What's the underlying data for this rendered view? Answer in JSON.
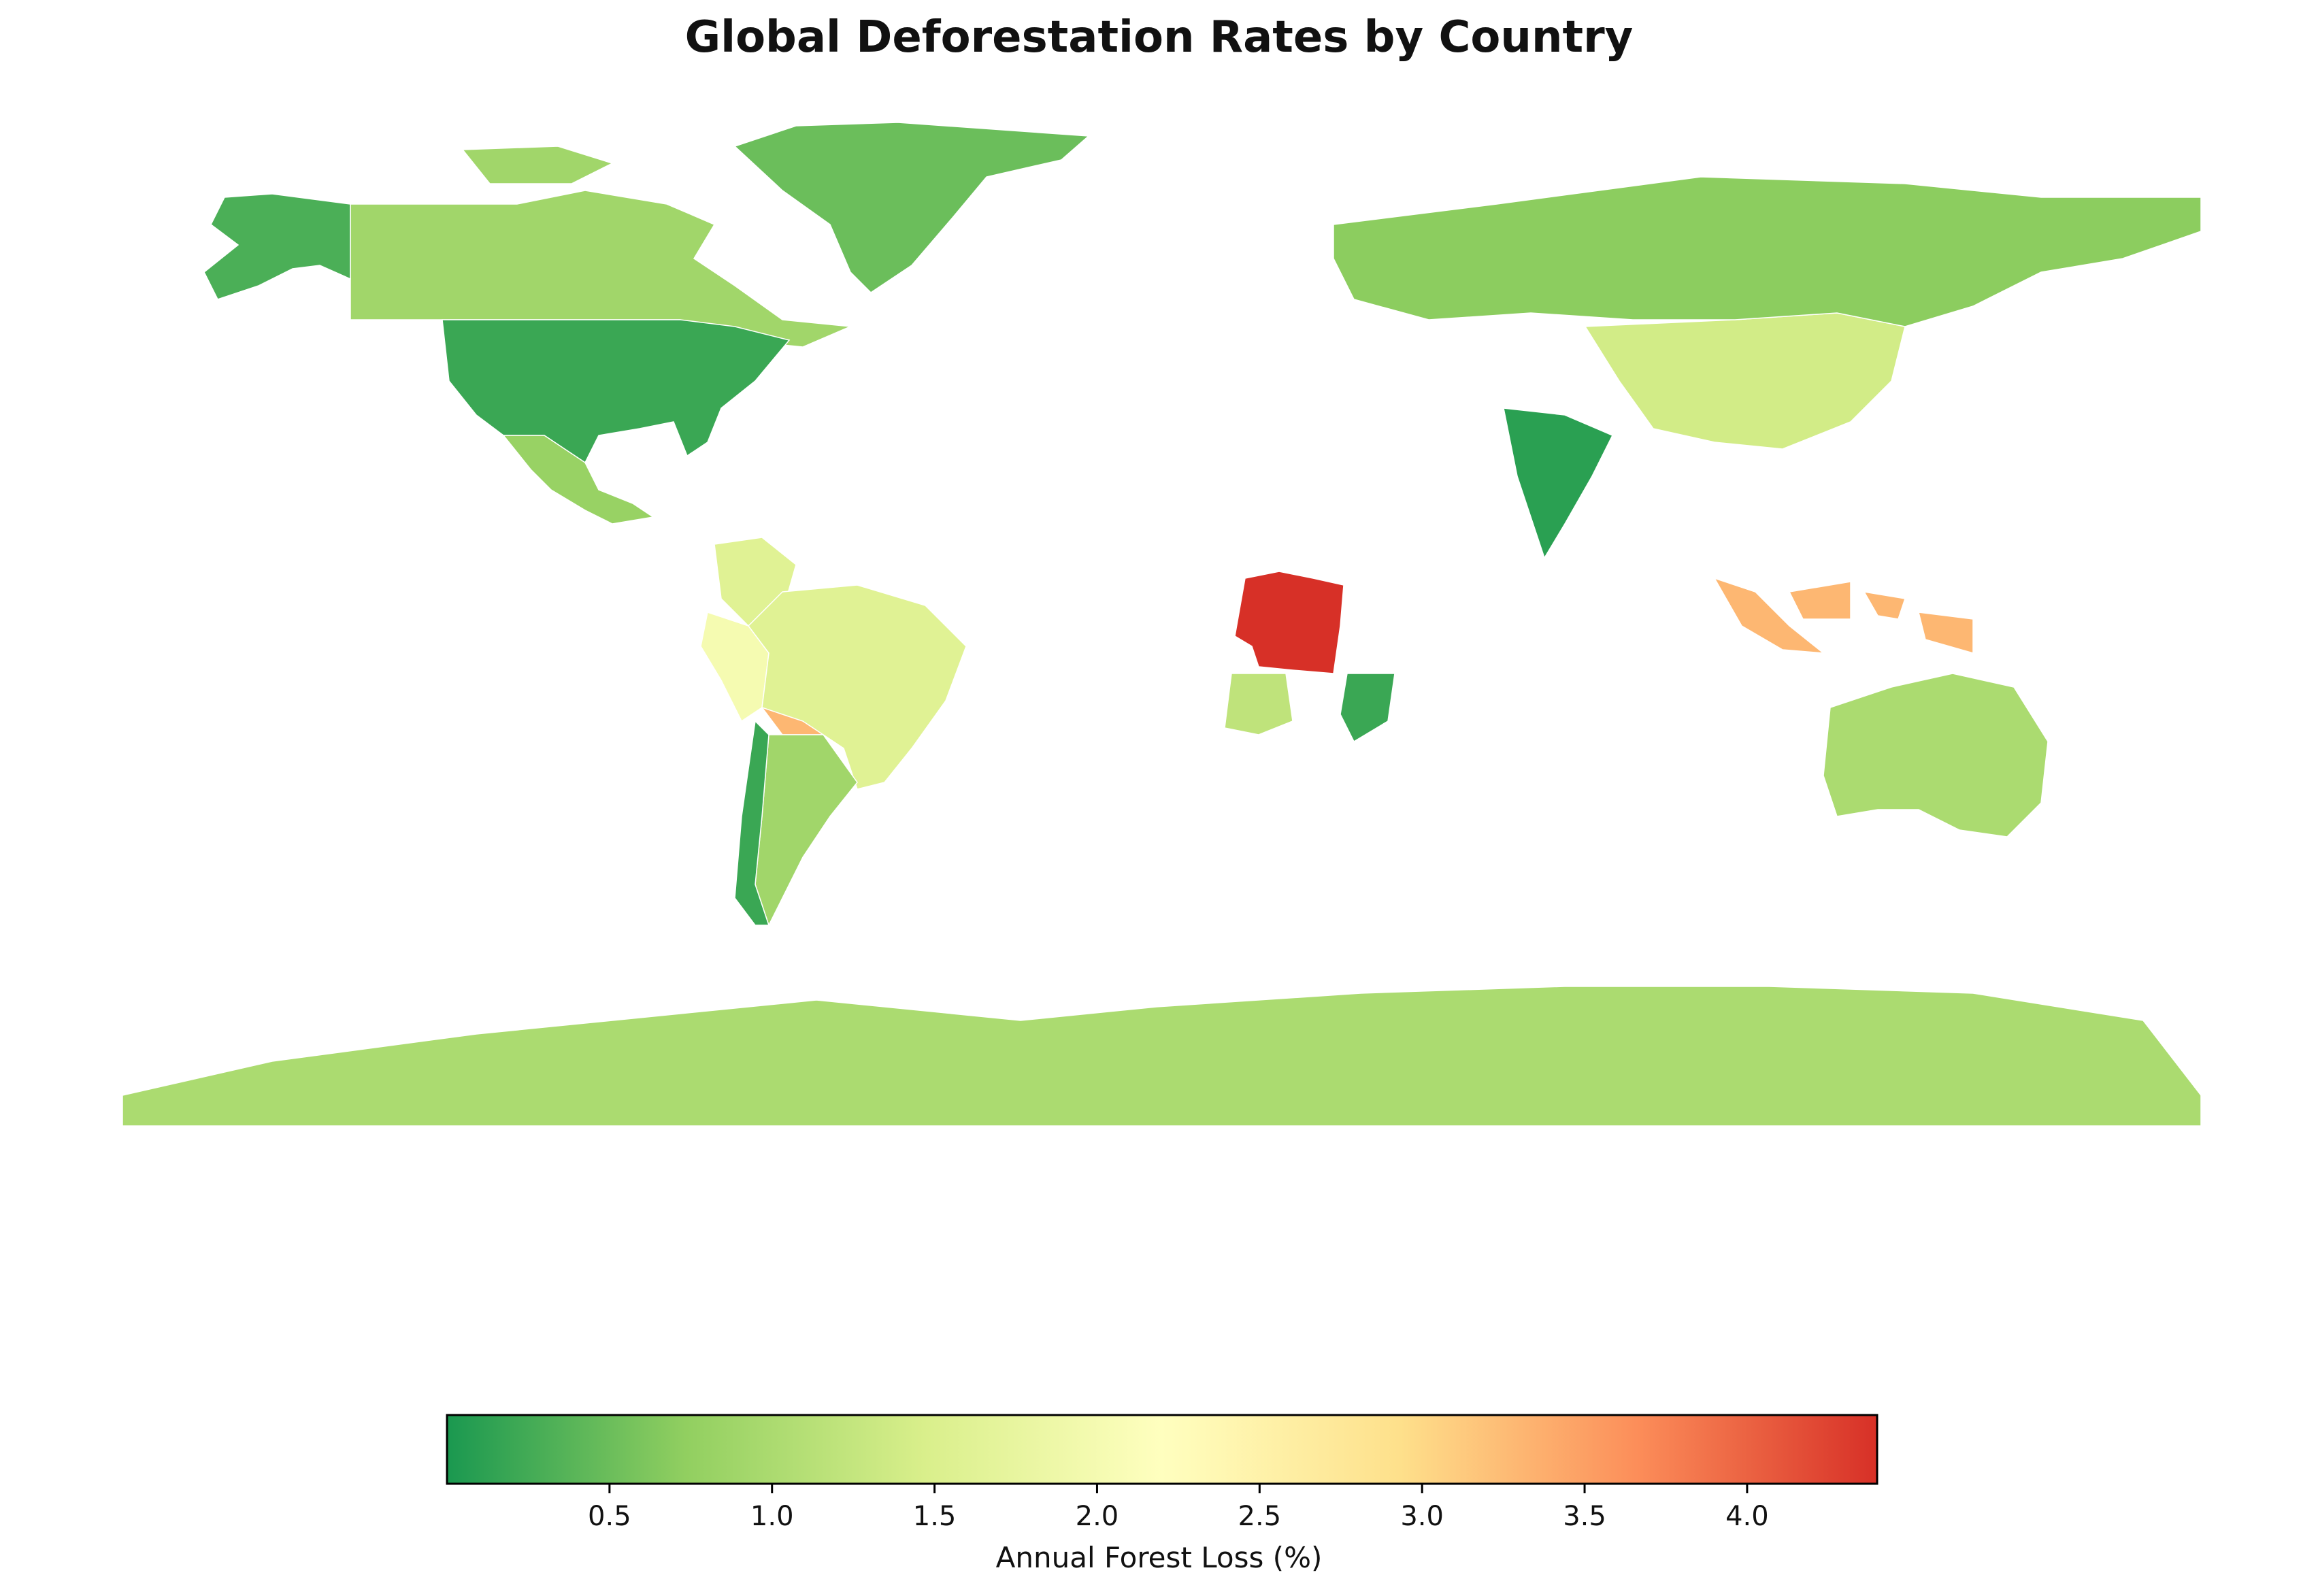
{
  "title": "Global Deforestation Rates by Country",
  "chart_data": {
    "type": "choropleth",
    "title": "Global Deforestation Rates by Country",
    "colorbar": {
      "label": "Annual Forest Loss (%)",
      "range": [
        0.0,
        4.4
      ],
      "ticks": [
        "0.5",
        "1.0",
        "1.5",
        "2.0",
        "2.5",
        "3.0",
        "3.5",
        "4.0"
      ],
      "colormap": [
        "#1a9850",
        "#91cf60",
        "#d9ef8b",
        "#ffffbf",
        "#fee08b",
        "#fc8d59",
        "#d73027"
      ]
    },
    "regions": [
      {
        "name": "DR Congo",
        "value": 4.4
      },
      {
        "name": "Indonesia",
        "value": 3.3
      },
      {
        "name": "Bolivia",
        "value": 3.3
      },
      {
        "name": "Peru",
        "value": 2.0
      },
      {
        "name": "Colombia",
        "value": 1.6
      },
      {
        "name": "Brazil",
        "value": 1.6
      },
      {
        "name": "China",
        "value": 1.4
      },
      {
        "name": "Canada",
        "value": 0.9
      },
      {
        "name": "Australia",
        "value": 1.0
      },
      {
        "name": "Russia",
        "value": 0.7
      },
      {
        "name": "United States",
        "value": 0.2
      },
      {
        "name": "Mexico",
        "value": 0.8
      },
      {
        "name": "India",
        "value": 0.1
      },
      {
        "name": "Greenland",
        "value": 0.5
      },
      {
        "name": "Alaska",
        "value": 0.3
      },
      {
        "name": "Mozambique",
        "value": 0.2
      },
      {
        "name": "Angola",
        "value": 1.2
      },
      {
        "name": "Argentina",
        "value": 0.9
      },
      {
        "name": "Chile",
        "value": 0.2
      },
      {
        "name": "Antarctica",
        "value": 1.0
      }
    ]
  }
}
